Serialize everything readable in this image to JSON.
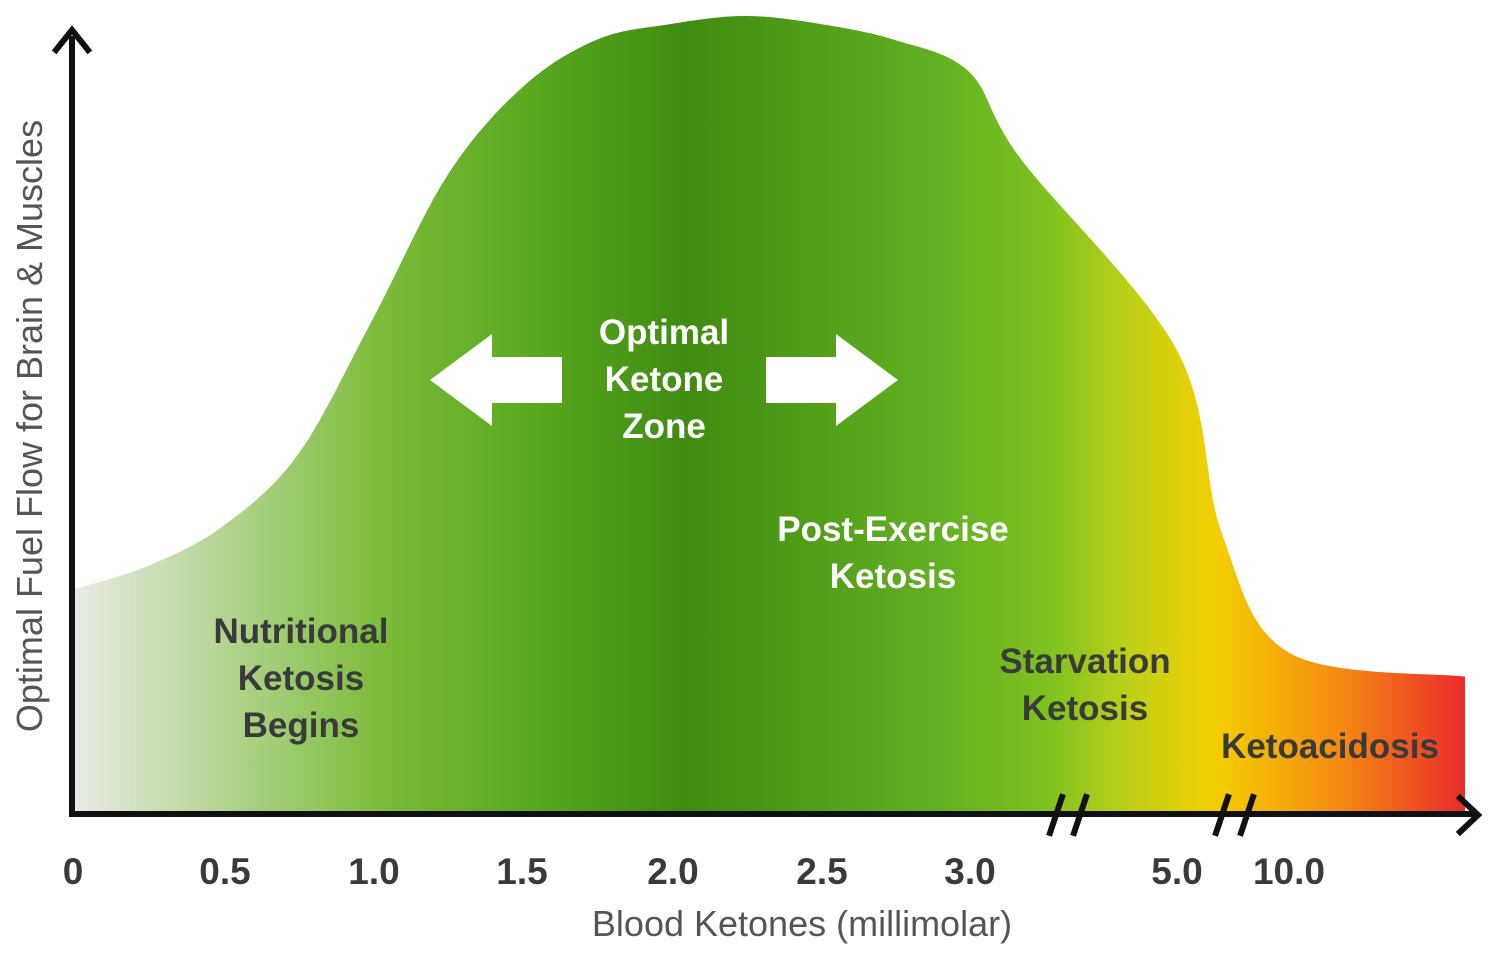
{
  "chart_data": {
    "type": "area",
    "title": "",
    "xlabel": "Blood Ketones (millimolar)",
    "ylabel": "Optimal Fuel Flow for Brain  & Muscles",
    "x_ticks": [
      "0",
      "0.5",
      "1.0",
      "1.5",
      "2.0",
      "2.5",
      "3.0",
      "5.0",
      "10.0"
    ],
    "axis_breaks": [
      "between 3.0 and 5.0",
      "between 5.0 and 10.0"
    ],
    "y_ticks": [],
    "grid": false,
    "legend": "none",
    "series": [
      {
        "x": [
          0,
          0.25,
          0.5,
          0.75,
          1.0,
          1.25,
          1.5,
          1.75,
          2.0,
          2.25,
          2.5,
          2.75,
          3.0,
          3.5,
          5.0,
          7.0,
          10.0,
          14.0
        ],
        "values": [
          0.28,
          0.31,
          0.36,
          0.45,
          0.62,
          0.8,
          0.91,
          0.97,
          0.99,
          1.0,
          0.99,
          0.97,
          0.93,
          0.82,
          0.58,
          0.35,
          0.2,
          0.17
        ]
      }
    ],
    "gradient_colors": [
      "#e8ebe4",
      "#58a81e",
      "#3f8c12",
      "#7dc21f",
      "#f4cf00",
      "#f58a12",
      "#ea2b2b"
    ],
    "annotations": {
      "nutritional": [
        "Nutritional",
        "Ketosis",
        "Begins"
      ],
      "optimal": [
        "Optimal",
        "Ketone",
        "Zone"
      ],
      "post_exercise": [
        "Post-Exercise",
        "Ketosis"
      ],
      "starvation": [
        "Starvation",
        "Ketosis"
      ],
      "ketoacidosis": [
        "Ketoacidosis"
      ]
    }
  }
}
